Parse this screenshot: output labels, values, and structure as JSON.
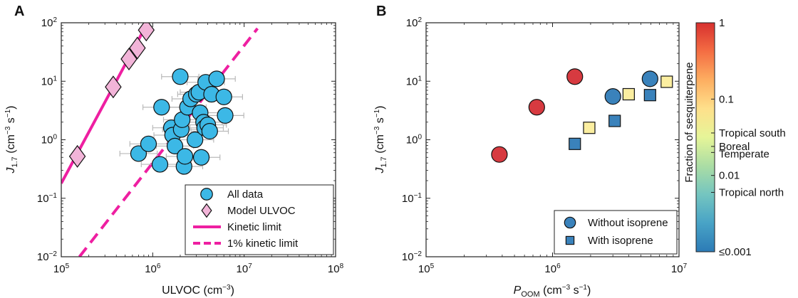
{
  "chart_data": [
    {
      "panel_label": "A",
      "type": "scatter",
      "xscale": "log",
      "yscale": "log",
      "xlim": [
        100000,
        100000000
      ],
      "ylim": [
        0.01,
        100
      ],
      "xlabel": "ULVOC (cm",
      "xlabel_sup": "−3",
      "xlabel_end": ")",
      "ylabel_sym": "J",
      "ylabel_sub": "1.7",
      "ylabel_unit": " (cm",
      "ylabel_sup1": "−3",
      "ylabel_mid": " s",
      "ylabel_sup2": "−1",
      "ylabel_end": ")",
      "x_ticks": [
        {
          "v": 100000,
          "base": "10",
          "exp": "5"
        },
        {
          "v": 1000000,
          "base": "10",
          "exp": "6"
        },
        {
          "v": 10000000,
          "base": "10",
          "exp": "7"
        },
        {
          "v": 100000000,
          "base": "10",
          "exp": "8"
        }
      ],
      "y_ticks": [
        {
          "v": 0.01,
          "base": "10",
          "exp": "−2"
        },
        {
          "v": 0.1,
          "base": "10",
          "exp": "−1"
        },
        {
          "v": 1,
          "base": "10",
          "exp": "0"
        },
        {
          "v": 10,
          "base": "10",
          "exp": "1"
        },
        {
          "v": 100,
          "base": "10",
          "exp": "2"
        }
      ],
      "series": [
        {
          "name": "All data",
          "marker": "circle",
          "color": "#3cb8e6",
          "points": [
            {
              "x": 700000,
              "y": 0.58
            },
            {
              "x": 900000,
              "y": 0.85
            },
            {
              "x": 1200000,
              "y": 0.38
            },
            {
              "x": 1250000,
              "y": 3.6
            },
            {
              "x": 1600000,
              "y": 1.6
            },
            {
              "x": 1650000,
              "y": 1.2
            },
            {
              "x": 1750000,
              "y": 0.78
            },
            {
              "x": 2000000,
              "y": 12.0
            },
            {
              "x": 2050000,
              "y": 1.5
            },
            {
              "x": 2100000,
              "y": 2.2
            },
            {
              "x": 2200000,
              "y": 0.35
            },
            {
              "x": 2250000,
              "y": 0.52
            },
            {
              "x": 2400000,
              "y": 3.6
            },
            {
              "x": 2600000,
              "y": 5.0
            },
            {
              "x": 2900000,
              "y": 1.0
            },
            {
              "x": 3000000,
              "y": 6.0
            },
            {
              "x": 3200000,
              "y": 6.5
            },
            {
              "x": 3300000,
              "y": 2.9
            },
            {
              "x": 3400000,
              "y": 0.5
            },
            {
              "x": 3600000,
              "y": 2.0
            },
            {
              "x": 3700000,
              "y": 1.6
            },
            {
              "x": 3800000,
              "y": 9.6
            },
            {
              "x": 4000000,
              "y": 1.8
            },
            {
              "x": 4200000,
              "y": 1.4
            },
            {
              "x": 4400000,
              "y": 6.0
            },
            {
              "x": 5000000,
              "y": 11.0
            },
            {
              "x": 6000000,
              "y": 5.4
            },
            {
              "x": 6200000,
              "y": 2.6
            }
          ],
          "xerr_factor": 1.6
        },
        {
          "name": "Model ULVOC",
          "marker": "diamond",
          "color": "#f2b4d8",
          "points": [
            {
              "x": 150000,
              "y": 0.52
            },
            {
              "x": 370000,
              "y": 8.0
            },
            {
              "x": 550000,
              "y": 24.0
            },
            {
              "x": 680000,
              "y": 37.0
            },
            {
              "x": 850000,
              "y": 75.0
            }
          ]
        },
        {
          "name": "Kinetic limit",
          "line": "solid",
          "color": "#ee1fa1",
          "points": [
            {
              "x": 100000,
              "y": 0.18
            },
            {
              "x": 880000,
              "y": 100
            }
          ]
        },
        {
          "name": "1% kinetic limit",
          "line": "dashed",
          "color": "#ee1fa1",
          "points": [
            {
              "x": 158000,
              "y": 0.01
            },
            {
              "x": 14000000,
              "y": 80
            }
          ]
        }
      ],
      "legend_position": "bottom-right"
    },
    {
      "panel_label": "B",
      "type": "scatter",
      "xscale": "log",
      "yscale": "log",
      "xlim": [
        100000,
        10000000
      ],
      "ylim": [
        0.01,
        100
      ],
      "xlabel_sym": "P",
      "xlabel_sub": "OOM",
      "xlabel_unit": " (cm",
      "xlabel_sup1": "−3",
      "xlabel_mid": " s",
      "xlabel_sup2": "−1",
      "xlabel_end": ")",
      "ylabel_sym": "J",
      "ylabel_sub": "1.7",
      "ylabel_unit": " (cm",
      "ylabel_sup1": "−3",
      "ylabel_mid": " s",
      "ylabel_sup2": "−1",
      "ylabel_end": ")",
      "x_ticks": [
        {
          "v": 100000,
          "base": "10",
          "exp": "5"
        },
        {
          "v": 1000000,
          "base": "10",
          "exp": "6"
        },
        {
          "v": 10000000,
          "base": "10",
          "exp": "7"
        }
      ],
      "y_ticks": [
        {
          "v": 0.01,
          "base": "10",
          "exp": "−2"
        },
        {
          "v": 0.1,
          "base": "10",
          "exp": "−1"
        },
        {
          "v": 1,
          "base": "10",
          "exp": "0"
        },
        {
          "v": 10,
          "base": "10",
          "exp": "1"
        },
        {
          "v": 100,
          "base": "10",
          "exp": "2"
        }
      ],
      "series": [
        {
          "name": "Without isoprene",
          "marker": "circle",
          "points": [
            {
              "x": 380000,
              "y": 0.56,
              "color": "#d73a40"
            },
            {
              "x": 750000,
              "y": 3.6,
              "color": "#d73a40"
            },
            {
              "x": 1500000,
              "y": 12.0,
              "color": "#d73a40"
            },
            {
              "x": 3000000,
              "y": 5.5,
              "color": "#3a82bb"
            },
            {
              "x": 5900000,
              "y": 11.0,
              "color": "#3a82bb"
            }
          ]
        },
        {
          "name": "With isoprene",
          "marker": "square",
          "points": [
            {
              "x": 1500000,
              "y": 0.85,
              "color": "#3a82bb"
            },
            {
              "x": 1950000,
              "y": 1.6,
              "color": "#fbeea0"
            },
            {
              "x": 3100000,
              "y": 2.1,
              "color": "#3a82bb"
            },
            {
              "x": 4000000,
              "y": 6.0,
              "color": "#fbeea0"
            },
            {
              "x": 5900000,
              "y": 5.8,
              "color": "#3a82bb"
            },
            {
              "x": 8000000,
              "y": 9.8,
              "color": "#fbeea0"
            }
          ]
        }
      ],
      "legend_position": "bottom-right",
      "colorbar": {
        "label": "Fraction of sesquiterpene",
        "scale": "log",
        "range": [
          0.001,
          1
        ],
        "ticks": [
          {
            "v": 1,
            "label": "1"
          },
          {
            "v": 0.1,
            "label": "0.1"
          },
          {
            "v": 0.01,
            "label": "0.01"
          },
          {
            "v": 0.001,
            "label": "≤0.001"
          }
        ],
        "annotations": [
          {
            "v": 0.036,
            "label": "Tropical south"
          },
          {
            "v": 0.024,
            "label": "Boreal"
          },
          {
            "v": 0.02,
            "label": "Temperate"
          },
          {
            "v": 0.006,
            "label": "Tropical north"
          }
        ],
        "colors": [
          "#2c7bb6",
          "#48a3c6",
          "#74c5c0",
          "#abdda4",
          "#e6f598",
          "#fee08b",
          "#fdae61",
          "#f46d43",
          "#d7302f"
        ]
      }
    }
  ],
  "legend_A": [
    {
      "label": "All data",
      "marker": "circle",
      "color": "#3cb8e6"
    },
    {
      "label": "Model ULVOC",
      "marker": "diamond",
      "color": "#f2b4d8"
    },
    {
      "label": "Kinetic limit",
      "line": "solid",
      "color": "#ee1fa1"
    },
    {
      "label": "1% kinetic limit",
      "line": "dashed",
      "color": "#ee1fa1"
    }
  ],
  "legend_B": [
    {
      "label": "Without isoprene",
      "marker": "circle",
      "color": "#3a82bb"
    },
    {
      "label": "With isoprene",
      "marker": "square",
      "color": "#3a82bb"
    }
  ]
}
